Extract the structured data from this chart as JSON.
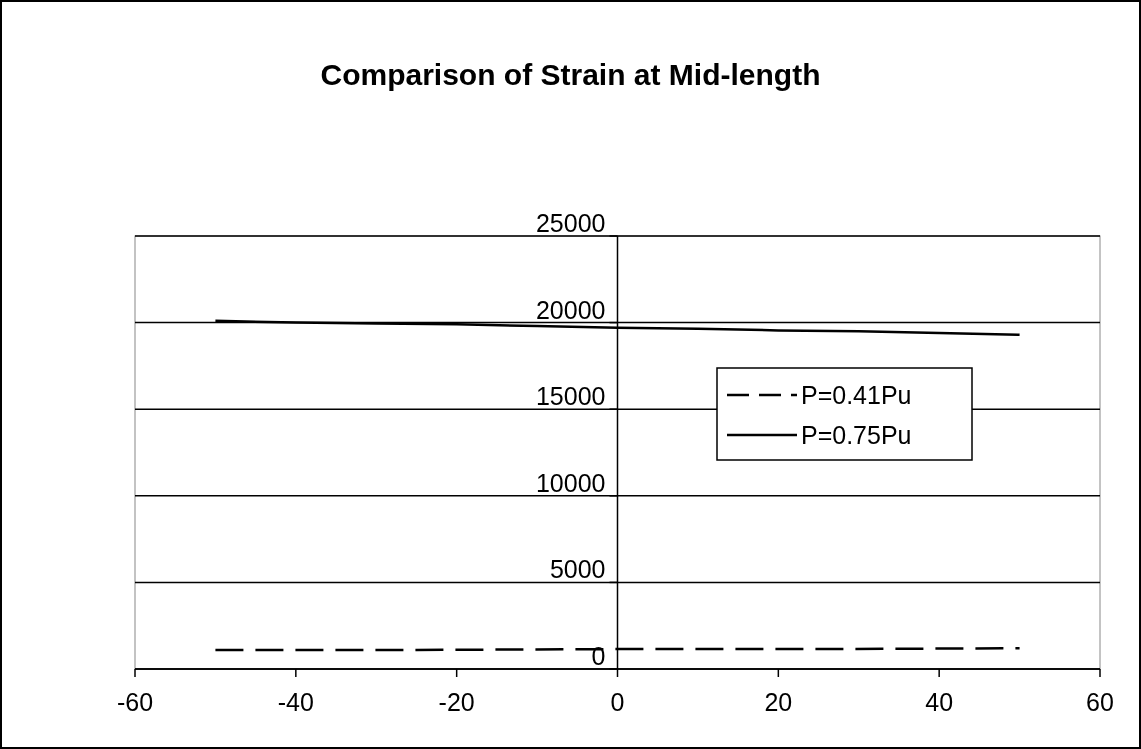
{
  "chart_data": {
    "type": "line",
    "title": "Comparison of Strain at Mid-length",
    "series": [
      {
        "name": "P=0.41Pu",
        "color": "#000000",
        "line_style": "dashed",
        "x": [
          -50,
          -25,
          0,
          25,
          50
        ],
        "values": [
          1100,
          1100,
          1150,
          1150,
          1200
        ]
      },
      {
        "name": "P=0.75Pu",
        "color": "#000000",
        "line_style": "solid",
        "x": [
          -50,
          -40,
          -30,
          -20,
          -10,
          0,
          10,
          20,
          30,
          40,
          50
        ],
        "values": [
          20100,
          20000,
          19950,
          19900,
          19800,
          19700,
          19650,
          19550,
          19500,
          19400,
          19300
        ]
      }
    ],
    "xlim": [
      -60,
      60
    ],
    "xticks": [
      -60,
      -40,
      -20,
      0,
      20,
      40,
      60
    ],
    "ylim": [
      0,
      25000
    ],
    "yticks": [
      0,
      5000,
      10000,
      15000,
      20000,
      25000
    ],
    "grid": "y",
    "legend": "right"
  }
}
